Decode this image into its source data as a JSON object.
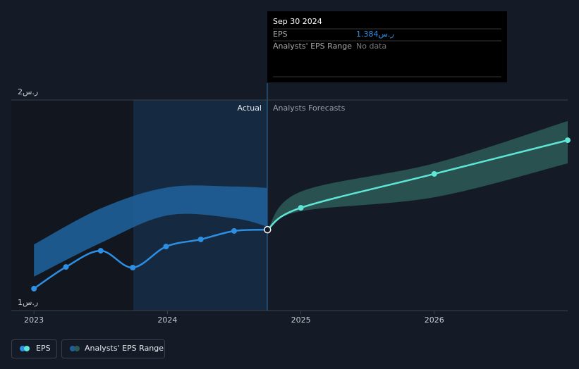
{
  "chart_data": {
    "type": "line",
    "xlim": [
      2022.83,
      2027.0
    ],
    "xticks": [
      2023,
      2024,
      2025,
      2026
    ],
    "ylim": [
      1,
      2
    ],
    "yticks": [
      {
        "value": 1,
        "label": "1ر.س"
      },
      {
        "value": 2,
        "label": "2ر.س"
      }
    ],
    "series": [
      {
        "name": "EPS",
        "color": "#2d8fe3",
        "x": [
          2023.0,
          2023.24,
          2023.5,
          2023.74,
          2023.99,
          2024.25,
          2024.5,
          2024.75
        ],
        "values": [
          1.104,
          1.207,
          1.284,
          1.204,
          1.304,
          1.338,
          1.378,
          1.384
        ],
        "forecast": {
          "color": "#5fe6d6",
          "x": [
            2024.75,
            2025.0,
            2026.0,
            2027.0
          ],
          "values": [
            1.384,
            1.488,
            1.649,
            1.809
          ]
        }
      }
    ],
    "range": {
      "name": "Analysts' EPS Range",
      "actual": {
        "color": "#1f5f98",
        "x": [
          2023.0,
          2023.5,
          2024.0,
          2024.5,
          2024.75
        ],
        "high": [
          1.314,
          1.485,
          1.585,
          1.589,
          1.582
        ],
        "low": [
          1.161,
          1.321,
          1.452,
          1.438,
          1.398
        ]
      },
      "forecast": {
        "color": "#2b5a58",
        "x": [
          2024.75,
          2025.0,
          2026.0,
          2027.0
        ],
        "high": [
          1.384,
          1.565,
          1.699,
          1.9
        ],
        "low": [
          1.384,
          1.472,
          1.538,
          1.699
        ]
      }
    },
    "annotations": {
      "actual": "Actual",
      "forecast": "Analysts Forecasts"
    },
    "tooltip": {
      "date": "Sep 30 2024",
      "x": 2024.75,
      "eps_label": "EPS",
      "value": 1.384,
      "value_label": "1.384ر.س",
      "range_label": "Analysts' EPS Range",
      "range_text": "No data"
    }
  }
}
